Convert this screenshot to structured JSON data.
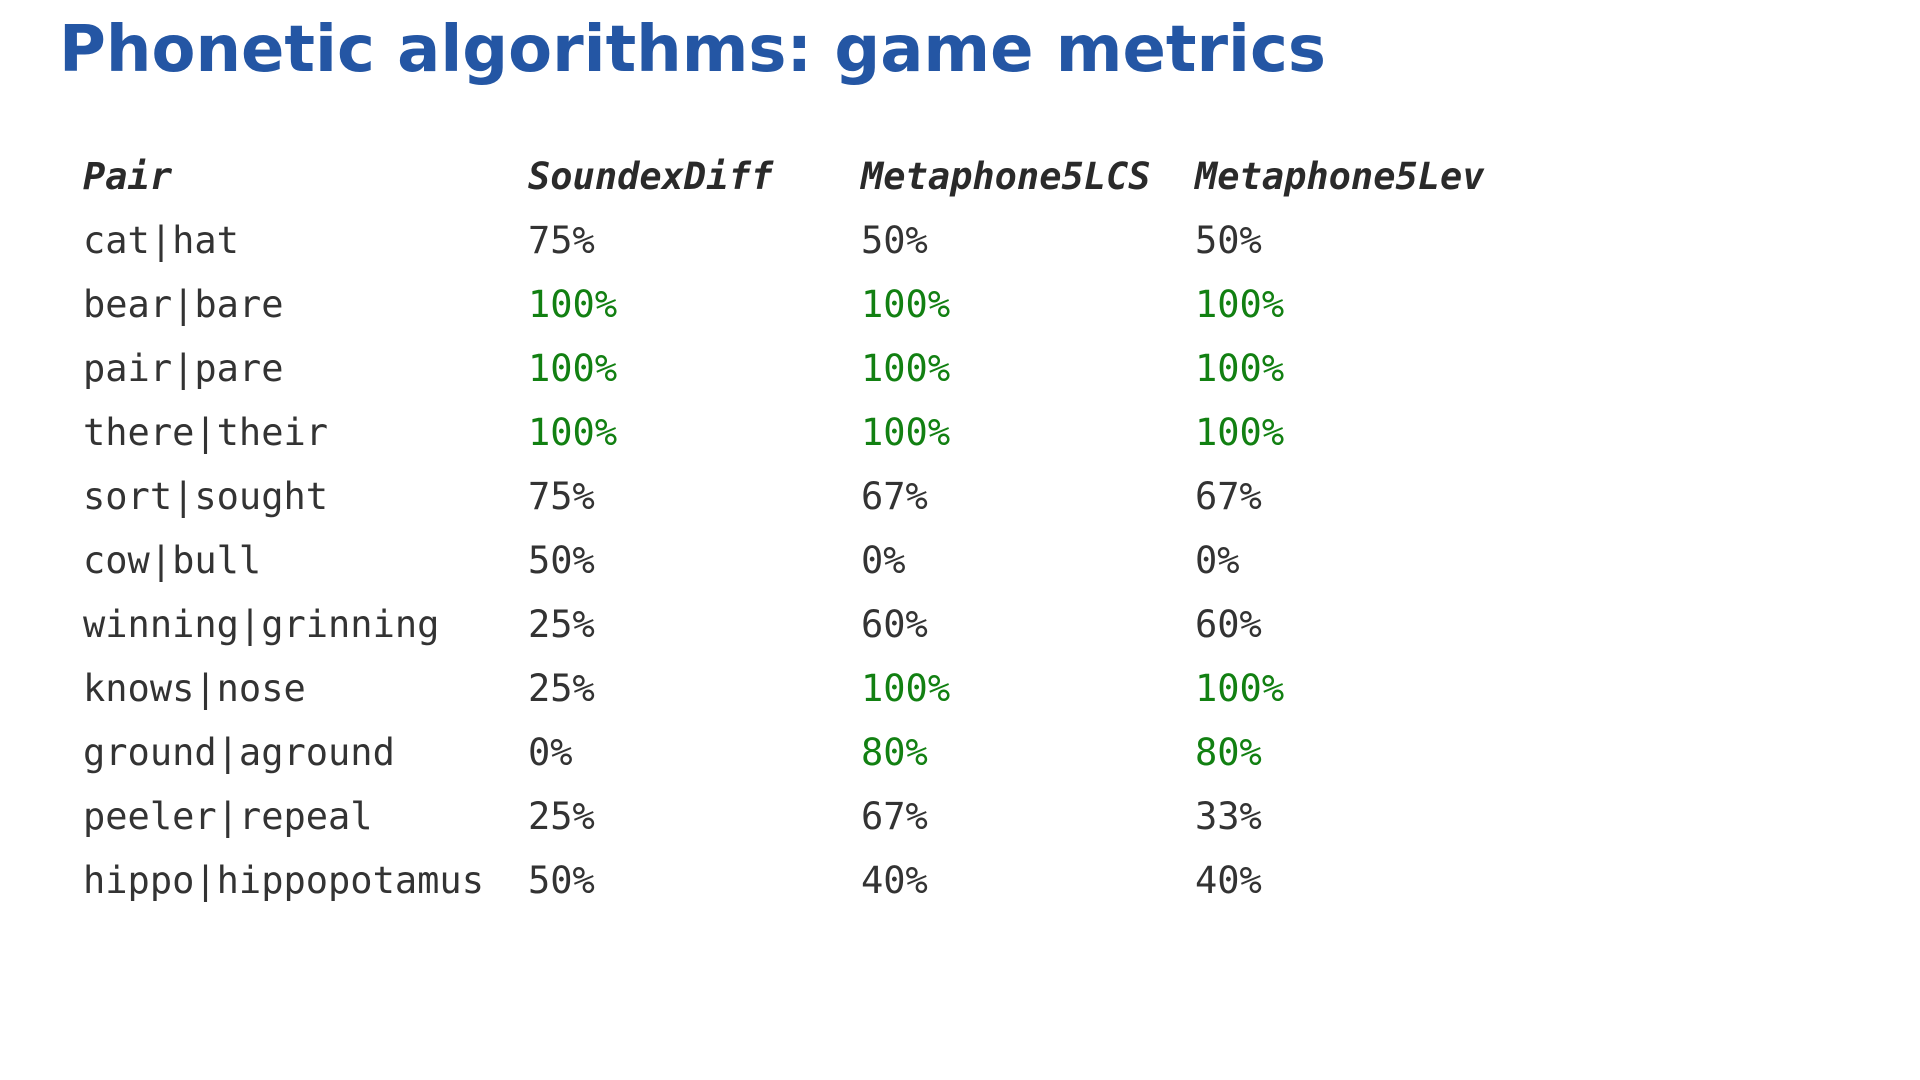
{
  "title": "Phonetic algorithms: game metrics",
  "table": {
    "columns": [
      "Pair",
      "SoundexDiff",
      "Metaphone5LCS",
      "Metaphone5Lev"
    ],
    "rows": [
      {
        "pair": "cat|hat",
        "values": [
          "75%",
          "50%",
          "50%"
        ]
      },
      {
        "pair": "bear|bare",
        "values": [
          "100%",
          "100%",
          "100%"
        ]
      },
      {
        "pair": "pair|pare",
        "values": [
          "100%",
          "100%",
          "100%"
        ]
      },
      {
        "pair": "there|their",
        "values": [
          "100%",
          "100%",
          "100%"
        ]
      },
      {
        "pair": "sort|sought",
        "values": [
          "75%",
          "67%",
          "67%"
        ]
      },
      {
        "pair": "cow|bull",
        "values": [
          "50%",
          "0%",
          "0%"
        ]
      },
      {
        "pair": "winning|grinning",
        "values": [
          "25%",
          "60%",
          "60%"
        ]
      },
      {
        "pair": "knows|nose",
        "values": [
          "25%",
          "100%",
          "100%"
        ]
      },
      {
        "pair": "ground|aground",
        "values": [
          "0%",
          "80%",
          "80%"
        ]
      },
      {
        "pair": "peeler|repeal",
        "values": [
          "25%",
          "67%",
          "33%"
        ]
      },
      {
        "pair": "hippo|hippopotamus",
        "values": [
          "50%",
          "40%",
          "40%"
        ]
      }
    ]
  },
  "colors": {
    "title": "#2456a4",
    "text": "#333333",
    "highlight": "#128012"
  }
}
